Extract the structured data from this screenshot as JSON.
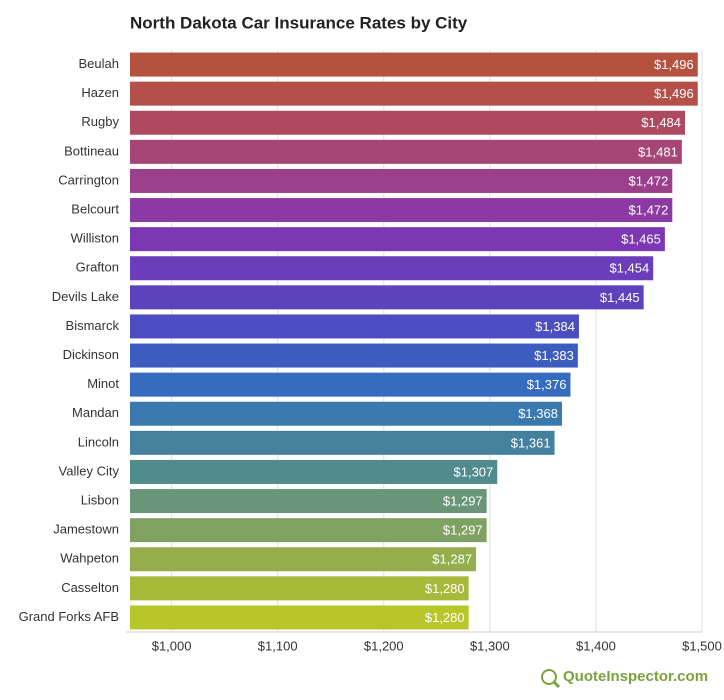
{
  "chart_data": {
    "type": "hbar",
    "title": "North Dakota Car Insurance Rates by City",
    "categories": [
      "Beulah",
      "Hazen",
      "Rugby",
      "Bottineau",
      "Carrington",
      "Belcourt",
      "Williston",
      "Grafton",
      "Devils Lake",
      "Bismarck",
      "Dickinson",
      "Minot",
      "Mandan",
      "Lincoln",
      "Valley City",
      "Lisbon",
      "Jamestown",
      "Wahpeton",
      "Casselton",
      "Grand Forks AFB"
    ],
    "values": [
      1496,
      1496,
      1484,
      1481,
      1472,
      1472,
      1465,
      1454,
      1445,
      1384,
      1383,
      1376,
      1368,
      1361,
      1307,
      1297,
      1297,
      1287,
      1280,
      1280
    ],
    "value_labels": [
      "$1,496",
      "$1,496",
      "$1,484",
      "$1,481",
      "$1,472",
      "$1,472",
      "$1,465",
      "$1,454",
      "$1,445",
      "$1,384",
      "$1,383",
      "$1,376",
      "$1,368",
      "$1,361",
      "$1,307",
      "$1,297",
      "$1,297",
      "$1,287",
      "$1,280",
      "$1,280"
    ],
    "colors": [
      "#b4513f",
      "#b44f4a",
      "#ad4a62",
      "#a54676",
      "#9a3f8c",
      "#8c3aa3",
      "#7d37b4",
      "#6c3dbb",
      "#5c43bd",
      "#4b4dc0",
      "#3d5cc0",
      "#356cc0",
      "#3a79b0",
      "#43819f",
      "#528b8e",
      "#699678",
      "#7fa263",
      "#96ad4c",
      "#a8b93a",
      "#b8c62a"
    ],
    "xlim": [
      957,
      1500
    ],
    "xticks": [
      {
        "value": 1000,
        "label": "$1,000"
      },
      {
        "value": 1100,
        "label": "$1,100"
      },
      {
        "value": 1200,
        "label": "$1,200"
      },
      {
        "value": 1300,
        "label": "$1,300"
      },
      {
        "value": 1400,
        "label": "$1,400"
      },
      {
        "value": 1500,
        "label": "$1,500"
      }
    ],
    "grid": true,
    "source": "QuoteInspector.com"
  }
}
